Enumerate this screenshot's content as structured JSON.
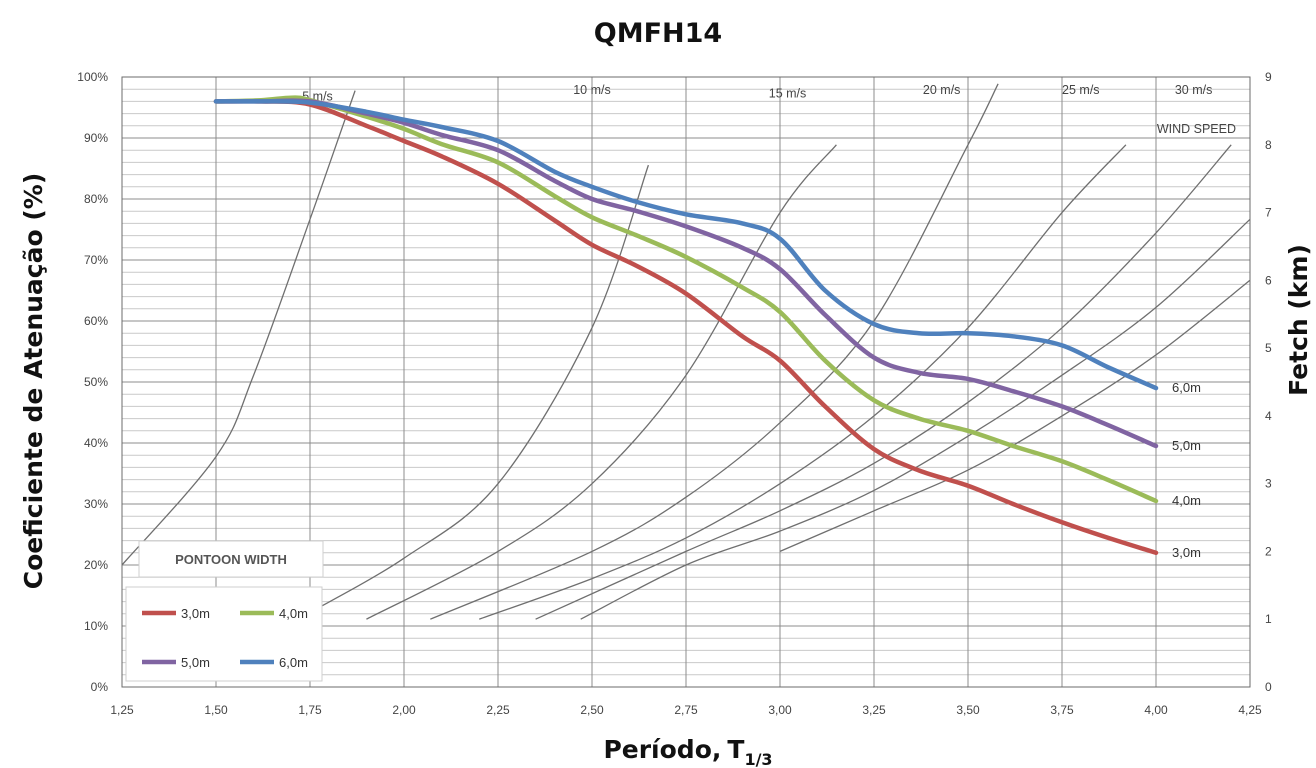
{
  "chart_data": {
    "type": "line",
    "title": "QMFH14",
    "xlabel_main": "Período,",
    "xlabel_sym": "T",
    "xlabel_sub": "1/3",
    "ylabel": "Coeficiente de Atenuação (%)",
    "y2label": "Fetch (km)",
    "xlim": [
      1.25,
      4.25
    ],
    "ylim": [
      0,
      100
    ],
    "y2lim": [
      0,
      9
    ],
    "x_ticks": [
      "1,25",
      "1,50",
      "1,75",
      "2,00",
      "2,25",
      "2,50",
      "2,75",
      "3,00",
      "3,25",
      "3,50",
      "3,75",
      "4,00",
      "4,25"
    ],
    "x_tick_values": [
      1.25,
      1.5,
      1.75,
      2.0,
      2.25,
      2.5,
      2.75,
      3.0,
      3.25,
      3.5,
      3.75,
      4.0,
      4.25
    ],
    "y_ticks": [
      "0%",
      "10%",
      "20%",
      "30%",
      "40%",
      "50%",
      "60%",
      "70%",
      "80%",
      "90%",
      "100%"
    ],
    "y_tick_values": [
      0,
      10,
      20,
      30,
      40,
      50,
      60,
      70,
      80,
      90,
      100
    ],
    "y2_ticks": [
      "0",
      "1",
      "2",
      "3",
      "4",
      "5",
      "6",
      "7",
      "8",
      "9"
    ],
    "y2_tick_values": [
      0,
      1,
      2,
      3,
      4,
      5,
      6,
      7,
      8,
      9
    ],
    "grid": true,
    "legend": {
      "title": "PONTOON WIDTH",
      "placement": "bottom-left",
      "entries": [
        "3,0m",
        "4,0m",
        "5,0m",
        "6,0m"
      ]
    },
    "series": [
      {
        "name": "3,0m",
        "end_label": "3,0m",
        "color": "#c0504d",
        "x": [
          1.5,
          1.62,
          1.75,
          1.9,
          2.0,
          2.1,
          2.25,
          2.4,
          2.5,
          2.62,
          2.75,
          2.9,
          3.0,
          3.12,
          3.25,
          3.37,
          3.5,
          3.62,
          3.75,
          3.87,
          4.0
        ],
        "y": [
          96,
          96,
          95.5,
          92,
          89.5,
          87,
          82.5,
          76.5,
          72.5,
          69,
          64.5,
          57.5,
          53.5,
          46,
          39,
          35.5,
          33,
          30,
          27,
          24.5,
          22
        ]
      },
      {
        "name": "4,0m",
        "end_label": "4,0m",
        "color": "#9bbb59",
        "x": [
          1.5,
          1.62,
          1.7,
          1.75,
          1.9,
          2.0,
          2.1,
          2.25,
          2.4,
          2.5,
          2.62,
          2.75,
          2.9,
          3.0,
          3.12,
          3.25,
          3.37,
          3.5,
          3.62,
          3.75,
          3.87,
          4.0
        ],
        "y": [
          96,
          96.2,
          96.6,
          96.2,
          93.5,
          91.5,
          89,
          86,
          80.5,
          77,
          74,
          70.5,
          65.5,
          61.5,
          53.5,
          47,
          44,
          42,
          39.5,
          37,
          34,
          30.5
        ]
      },
      {
        "name": "5,0m",
        "end_label": "5,0m",
        "color": "#8064a2",
        "x": [
          1.5,
          1.62,
          1.75,
          1.9,
          2.0,
          2.1,
          2.25,
          2.4,
          2.5,
          2.62,
          2.75,
          2.9,
          3.0,
          3.12,
          3.25,
          3.37,
          3.5,
          3.62,
          3.75,
          3.87,
          4.0
        ],
        "y": [
          96,
          96,
          96,
          94,
          92.5,
          90.5,
          88,
          83,
          80,
          78,
          75.5,
          72,
          68.5,
          61,
          54,
          51.5,
          50.5,
          48.5,
          46,
          43,
          39.5
        ]
      },
      {
        "name": "6,0m",
        "end_label": "6,0m",
        "color": "#4f81bd",
        "x": [
          1.5,
          1.62,
          1.75,
          1.9,
          2.0,
          2.1,
          2.25,
          2.4,
          2.5,
          2.62,
          2.75,
          2.9,
          3.0,
          3.12,
          3.25,
          3.37,
          3.5,
          3.62,
          3.75,
          3.87,
          4.0
        ],
        "y": [
          96,
          96,
          95.8,
          94.3,
          93,
          91.8,
          89.5,
          84.5,
          82,
          79.5,
          77.5,
          76,
          73.5,
          65,
          59.5,
          58,
          58,
          57.5,
          56,
          52.5,
          49
        ]
      }
    ],
    "wind_speed": {
      "title": "WIND SPEED",
      "curves": [
        {
          "label": "5 m/s",
          "label_x": 1.77,
          "label_y": 8.65,
          "x": [
            1.25,
            1.5,
            1.6,
            1.75,
            1.87
          ],
          "y": [
            1.8,
            3.4,
            4.6,
            6.9,
            8.8
          ]
        },
        {
          "label": "10 m/s",
          "label_x": 2.5,
          "label_y": 8.75,
          "x": [
            1.75,
            2.0,
            2.25,
            2.5,
            2.65
          ],
          "y": [
            1.1,
            1.9,
            3.0,
            5.3,
            7.7
          ]
        },
        {
          "label": "15 m/s",
          "label_x": 3.02,
          "label_y": 8.7,
          "x": [
            1.9,
            2.25,
            2.5,
            2.75,
            3.0,
            3.15
          ],
          "y": [
            1.0,
            2.0,
            3.0,
            4.6,
            7.0,
            8.0
          ]
        },
        {
          "label": "20 m/s",
          "label_x": 3.43,
          "label_y": 8.75,
          "x": [
            2.07,
            2.5,
            2.75,
            3.0,
            3.25,
            3.5,
            3.58
          ],
          "y": [
            1.0,
            2.0,
            2.8,
            3.9,
            5.4,
            8.0,
            8.9
          ]
        },
        {
          "label": "25 m/s",
          "label_x": 3.8,
          "label_y": 8.75,
          "x": [
            2.2,
            2.5,
            2.75,
            3.0,
            3.25,
            3.5,
            3.75,
            3.92
          ],
          "y": [
            1.0,
            1.6,
            2.2,
            3.0,
            4.0,
            5.3,
            7.0,
            8.0
          ]
        },
        {
          "label": "30 m/s",
          "label_x": 4.1,
          "label_y": 8.75,
          "x": [
            2.35,
            2.75,
            3.0,
            3.25,
            3.5,
            3.75,
            4.0,
            4.2
          ],
          "y": [
            1.0,
            2.0,
            2.6,
            3.3,
            4.2,
            5.3,
            6.7,
            8.0
          ]
        },
        {
          "label": "",
          "label_x": 0,
          "label_y": 0,
          "x": [
            2.47,
            2.75,
            3.0,
            3.25,
            3.5,
            3.75,
            4.0,
            4.25
          ],
          "y": [
            1.0,
            1.8,
            2.3,
            2.9,
            3.7,
            4.6,
            5.6,
            6.9
          ]
        },
        {
          "label": "",
          "label_x": 0,
          "label_y": 0,
          "x": [
            3.0,
            3.25,
            3.5,
            3.75,
            4.0,
            4.25
          ],
          "y": [
            2.0,
            2.6,
            3.2,
            4.0,
            4.9,
            6.0
          ]
        }
      ]
    }
  }
}
